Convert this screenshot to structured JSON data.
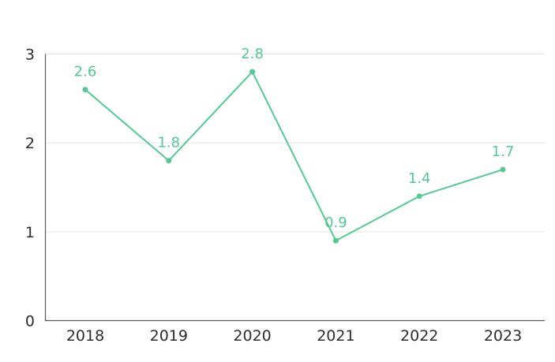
{
  "chart_data": {
    "type": "line",
    "title": "",
    "xlabel": "",
    "ylabel": "",
    "categories": [
      "2018",
      "2019",
      "2020",
      "2021",
      "2022",
      "2023"
    ],
    "series": [
      {
        "name": "value",
        "values": [
          2.6,
          1.8,
          2.8,
          0.9,
          1.4,
          1.7
        ]
      }
    ],
    "point_labels": [
      "2.6",
      "1.8",
      "2.8",
      "0.9",
      "1.4",
      "1.7"
    ],
    "ylim": [
      0,
      3
    ],
    "yticks": [
      0,
      1,
      2,
      3
    ],
    "grid": true,
    "legend_position": "none",
    "colors": {
      "line": "#54c992",
      "marker": "#54c992",
      "value_label": "#54c992",
      "gridline": "#e4e4e4",
      "axis": "#5b5b5b",
      "tick_text": "#2d2d2d",
      "background": "#ffffff"
    }
  }
}
